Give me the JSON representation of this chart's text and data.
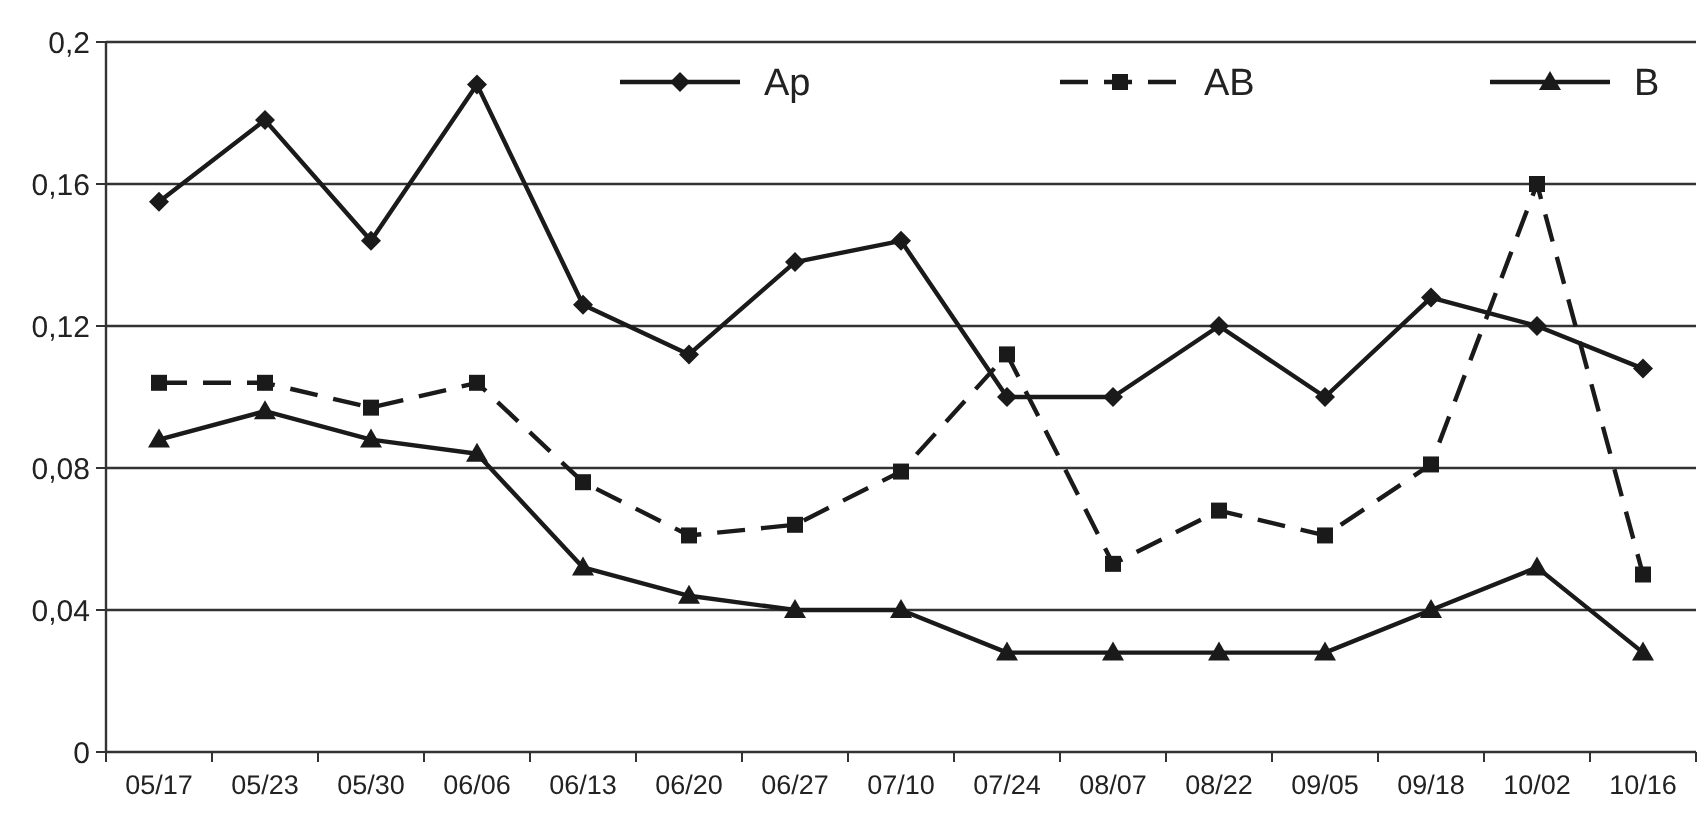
{
  "chart_data": {
    "type": "line",
    "categories": [
      "05/17",
      "05/23",
      "05/30",
      "06/06",
      "06/13",
      "06/20",
      "06/27",
      "07/10",
      "07/24",
      "08/07",
      "08/22",
      "09/05",
      "09/18",
      "10/02",
      "10/16"
    ],
    "series": [
      {
        "name": "Ap",
        "color": "#1a1a1a",
        "marker": "diamond",
        "line_style": "solid",
        "values": [
          0.155,
          0.178,
          0.144,
          0.188,
          0.126,
          0.112,
          0.138,
          0.144,
          0.1,
          0.1,
          0.12,
          0.1,
          0.128,
          0.12,
          0.108
        ]
      },
      {
        "name": "AB",
        "color": "#1a1a1a",
        "marker": "square",
        "line_style": "dashed",
        "values": [
          0.104,
          0.104,
          0.097,
          0.104,
          0.076,
          0.061,
          0.064,
          0.079,
          0.112,
          0.053,
          0.068,
          0.061,
          0.081,
          0.16,
          0.05
        ]
      },
      {
        "name": "B",
        "color": "#1a1a1a",
        "marker": "triangle",
        "line_style": "solid",
        "values": [
          0.088,
          0.096,
          0.088,
          0.084,
          0.052,
          0.044,
          0.04,
          0.04,
          0.028,
          0.028,
          0.028,
          0.028,
          0.04,
          0.052,
          0.028
        ]
      }
    ],
    "ylim": [
      0,
      0.2
    ],
    "yticks": [
      {
        "value": 0,
        "label": "0"
      },
      {
        "value": 0.04,
        "label": "0,04"
      },
      {
        "value": 0.08,
        "label": "0,08"
      },
      {
        "value": 0.12,
        "label": "0,12"
      },
      {
        "value": 0.16,
        "label": "0,16"
      },
      {
        "value": 0.2,
        "label": "0,2"
      }
    ],
    "grid": "y",
    "legend": "top"
  }
}
